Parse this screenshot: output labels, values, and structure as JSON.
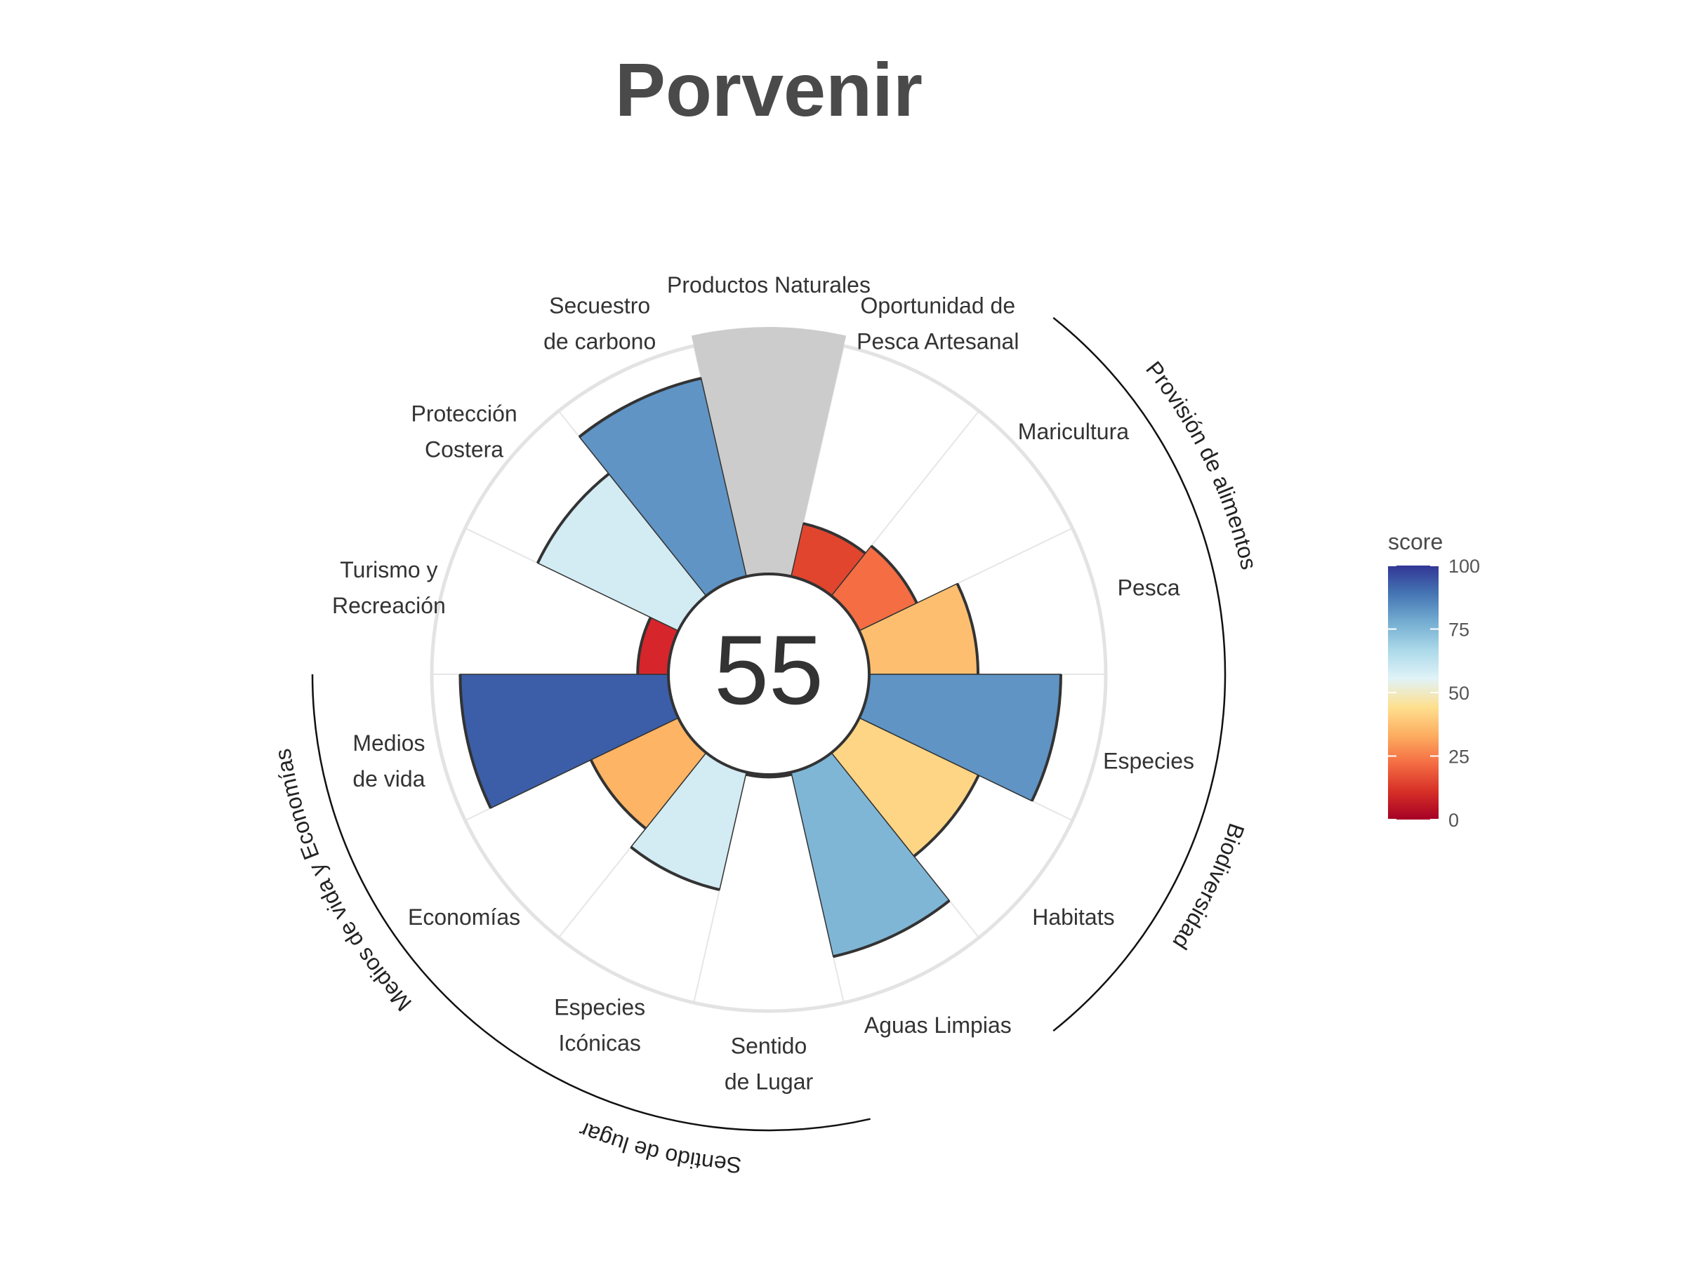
{
  "chart_data": {
    "type": "polar-bar",
    "title": "Porvenir",
    "center_score": "55",
    "ylim": [
      0,
      100
    ],
    "categories": [
      {
        "label": [
          "Productos Naturales"
        ],
        "value": null,
        "color": "#cccccc"
      },
      {
        "label": [
          "Oportunidad de",
          "Pesca Artesanal"
        ],
        "value": 23,
        "color": "#e2452e"
      },
      {
        "label": [
          "Maricultura"
        ],
        "value": 27,
        "color": "#f46d43"
      },
      {
        "label": [
          "Pesca"
        ],
        "value": 46,
        "color": "#fdbf6f"
      },
      {
        "label": [
          "Especies"
        ],
        "value": 81,
        "color": "#5f94c5"
      },
      {
        "label": [
          "Habitats"
        ],
        "value": 56,
        "color": "#fdd585"
      },
      {
        "label": [
          "Aguas Limpias"
        ],
        "value": 80,
        "color": "#7fb6d6"
      },
      {
        "label": [
          "Sentido",
          "de Lugar"
        ],
        "value": 1,
        "color": "#b2182b"
      },
      {
        "label": [
          "Especies",
          "Icónicas"
        ],
        "value": 51,
        "color": "#d3ebf3"
      },
      {
        "label": [
          "Economías"
        ],
        "value": 41,
        "color": "#fdb464"
      },
      {
        "label": [
          "Medios",
          "de vida"
        ],
        "value": 88,
        "color": "#3c5ea8"
      },
      {
        "label": [
          "Turismo y",
          "Recreación"
        ],
        "value": 13,
        "color": "#d7252c"
      },
      {
        "label": [
          "Protección",
          "Costera"
        ],
        "value": 66,
        "color": "#d3ebf3"
      },
      {
        "label": [
          "Secuestro",
          "de carbono"
        ],
        "value": 86,
        "color": "#5f94c5"
      }
    ],
    "groups": [
      {
        "name": "Provisión de alimentos",
        "from": 2,
        "to": 3
      },
      {
        "name": "Biodiversidad",
        "from": 4,
        "to": 5
      },
      {
        "name": "Sentido de lugar",
        "from": 7,
        "to": 8
      },
      {
        "name": "Medios de vida y Economías",
        "from": 9,
        "to": 10
      }
    ],
    "legend": {
      "title": "score",
      "ticks": [
        "0",
        "25",
        "50",
        "75",
        "100"
      ],
      "tick_values": [
        0,
        25,
        50,
        75,
        100
      ],
      "colors": [
        "#a50026",
        "#d73027",
        "#f46d43",
        "#fdae61",
        "#fee090",
        "#e0f3f8",
        "#abd9e9",
        "#74add1",
        "#4575b4",
        "#313695"
      ]
    },
    "grid": true
  }
}
